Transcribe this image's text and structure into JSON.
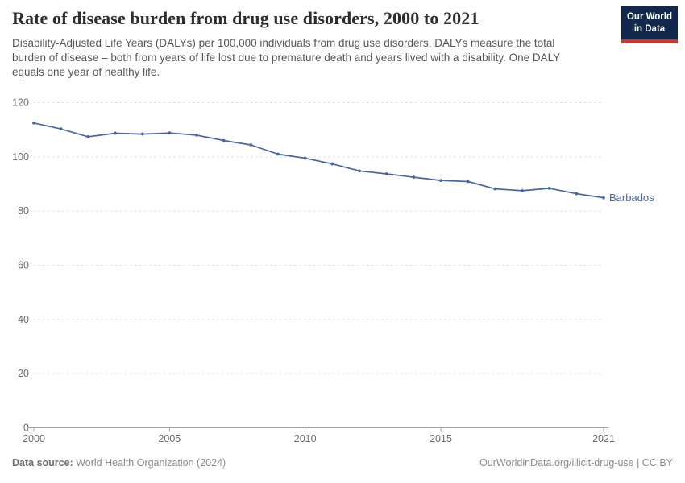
{
  "header": {
    "title": "Rate of disease burden from drug use disorders, 2000 to 2021",
    "subtitle": "Disability-Adjusted Life Years (DALYs) per 100,000 individuals from drug use disorders. DALYs measure the total burden of disease – both from years of life lost due to premature death and years lived with a disability. One DALY equals one year of healthy life."
  },
  "logo": {
    "line1": "Our World",
    "line2": "in Data",
    "bg_color": "#12294d",
    "stripe_color": "#d0342c"
  },
  "chart_data": {
    "type": "line",
    "title": "Rate of disease burden from drug use disorders, 2000 to 2021",
    "ylabel": "",
    "xlabel": "",
    "xlim": [
      2000,
      2021
    ],
    "ylim": [
      0,
      120
    ],
    "yticks": [
      0,
      20,
      40,
      60,
      80,
      100,
      120
    ],
    "xticks": [
      2000,
      2005,
      2010,
      2015,
      2021
    ],
    "grid": "horizontal-dashed",
    "legend_position": "end-of-line-label",
    "series": [
      {
        "name": "Barbados",
        "color": "#4766a4",
        "x": [
          2000,
          2001,
          2002,
          2003,
          2004,
          2005,
          2006,
          2007,
          2008,
          2009,
          2010,
          2011,
          2012,
          2013,
          2014,
          2015,
          2016,
          2017,
          2018,
          2019,
          2020,
          2021
        ],
        "values": [
          112.5,
          110.3,
          107.4,
          108.7,
          108.4,
          108.8,
          108.0,
          106.0,
          104.4,
          101.0,
          99.5,
          97.4,
          94.8,
          93.7,
          92.5,
          91.3,
          90.9,
          88.2,
          87.5,
          88.4,
          86.4,
          84.9
        ]
      }
    ]
  },
  "footer": {
    "source_label": "Data source:",
    "source_value": "World Health Organization (2024)",
    "credit": "OurWorldinData.org/illicit-drug-use | CC BY"
  },
  "colors": {
    "series": "#4766a4",
    "grid": "#dddddd",
    "axis": "#a1a1a1",
    "tick_label": "#6b6b6b",
    "title_text": "#2f2d2d",
    "subtitle_text": "#555555"
  }
}
